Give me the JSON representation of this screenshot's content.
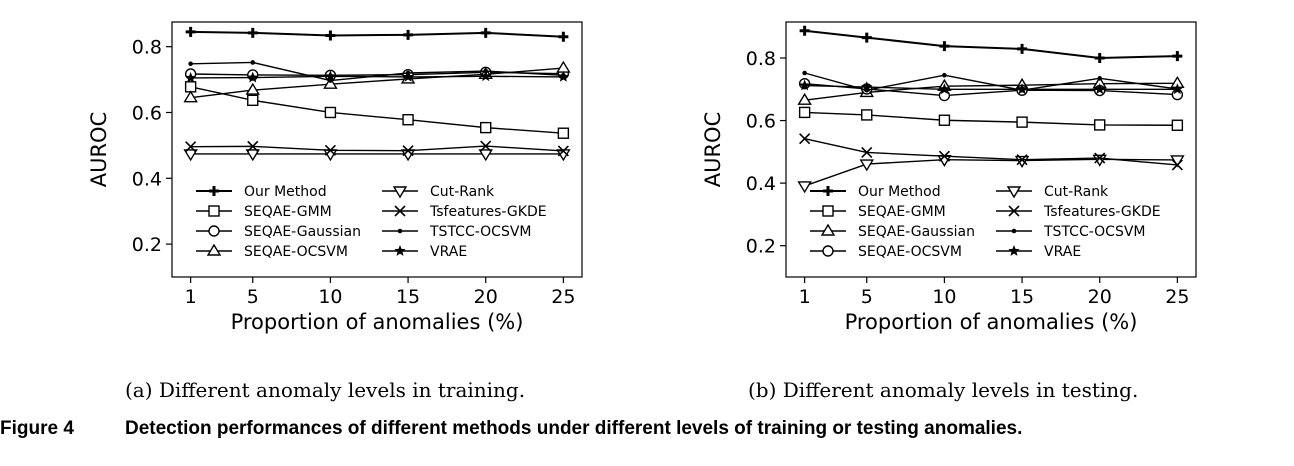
{
  "chart_data": [
    {
      "type": "line",
      "x": [
        1,
        5,
        10,
        15,
        20,
        25
      ],
      "xlabel": "Proportion of anomalies (%)",
      "ylabel": "AUROC",
      "ylim": [
        0.1,
        0.875
      ],
      "yticks": [
        "0.2",
        "0.4",
        "0.6",
        "0.8"
      ],
      "xticks": [
        "1",
        "5",
        "10",
        "15",
        "20",
        "25"
      ],
      "legend_position": "lower-center",
      "series": [
        {
          "name": "Our Method",
          "marker": "plus",
          "values": [
            0.845,
            0.842,
            0.834,
            0.836,
            0.842,
            0.83
          ]
        },
        {
          "name": "SEQAE-GMM",
          "marker": "square",
          "values": [
            0.678,
            0.637,
            0.6,
            0.578,
            0.554,
            0.537
          ]
        },
        {
          "name": "SEQAE-Gaussian",
          "marker": "circle",
          "values": [
            0.717,
            0.714,
            0.713,
            0.715,
            0.722,
            0.718
          ]
        },
        {
          "name": "SEQAE-OCSVM",
          "marker": "triangle-up",
          "values": [
            0.645,
            0.668,
            0.686,
            0.702,
            0.716,
            0.735
          ]
        },
        {
          "name": "Cut-Rank",
          "marker": "triangle-down",
          "values": [
            0.474,
            0.474,
            0.474,
            0.474,
            0.474,
            0.474
          ]
        },
        {
          "name": "Tsfeatures-GKDE",
          "marker": "x",
          "values": [
            0.496,
            0.497,
            0.485,
            0.484,
            0.498,
            0.483
          ]
        },
        {
          "name": "TSTCC-OCSVM",
          "marker": "dot",
          "values": [
            0.748,
            0.752,
            0.697,
            0.72,
            0.726,
            0.713
          ]
        },
        {
          "name": "VRAE",
          "marker": "star",
          "values": [
            0.705,
            0.706,
            0.71,
            0.708,
            0.71,
            0.708
          ]
        }
      ]
    },
    {
      "type": "line",
      "x": [
        1,
        5,
        10,
        15,
        20,
        25
      ],
      "xlabel": "Proportion of anomalies (%)",
      "ylabel": "AUROC",
      "ylim": [
        0.1,
        0.915
      ],
      "yticks": [
        "0.2",
        "0.4",
        "0.6",
        "0.8"
      ],
      "xticks": [
        "1",
        "5",
        "10",
        "15",
        "20",
        "25"
      ],
      "legend_position": "lower-center",
      "series": [
        {
          "name": "Our Method",
          "marker": "plus",
          "values": [
            0.887,
            0.865,
            0.838,
            0.829,
            0.8,
            0.806
          ]
        },
        {
          "name": "SEQAE-GMM",
          "marker": "square",
          "values": [
            0.626,
            0.618,
            0.601,
            0.595,
            0.586,
            0.585
          ]
        },
        {
          "name": "SEQAE-Gaussian",
          "marker": "triangle-up",
          "values": [
            0.665,
            0.69,
            0.71,
            0.713,
            0.718,
            0.719
          ]
        },
        {
          "name": "SEQAE-OCSVM",
          "marker": "circle",
          "values": [
            0.718,
            0.701,
            0.68,
            0.697,
            0.696,
            0.683
          ]
        },
        {
          "name": "Cut-Rank",
          "marker": "triangle-down",
          "values": [
            0.391,
            0.461,
            0.475,
            0.472,
            0.476,
            0.474
          ]
        },
        {
          "name": "Tsfeatures-GKDE",
          "marker": "x",
          "values": [
            0.542,
            0.498,
            0.486,
            0.475,
            0.48,
            0.458
          ]
        },
        {
          "name": "TSTCC-OCSVM",
          "marker": "dot",
          "values": [
            0.752,
            0.697,
            0.745,
            0.697,
            0.735,
            0.701
          ]
        },
        {
          "name": "VRAE",
          "marker": "star",
          "values": [
            0.712,
            0.707,
            0.7,
            0.7,
            0.7,
            0.7
          ]
        }
      ]
    }
  ],
  "captions": {
    "panel_a": "(a)  Different anomaly levels in training.",
    "panel_b": "(b)  Different anomaly levels in testing.",
    "figure_number": "Figure 4",
    "figure_text": "Detection performances of different methods under different levels of training or testing anomalies."
  }
}
